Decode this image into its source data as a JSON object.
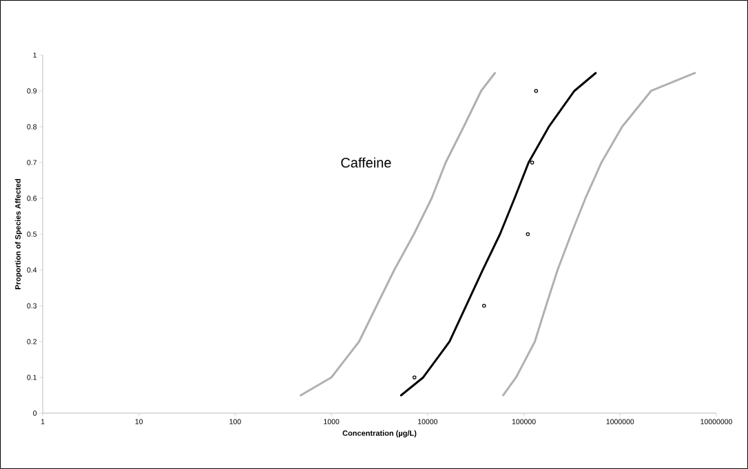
{
  "chart_data": {
    "type": "line",
    "xlabel": "Concentration (µg/L)",
    "ylabel": "Proportion of Species Affected",
    "annotations": [
      "Caffeine"
    ],
    "log": "x",
    "grid": false,
    "xlim": [
      1,
      10000000
    ],
    "xticks": [
      1,
      10,
      100,
      1000,
      10000,
      100000,
      1000000,
      10000000
    ],
    "ylim": [
      0,
      1
    ],
    "yticks": [
      0,
      0.1,
      0.2,
      0.3,
      0.4,
      0.5,
      0.6,
      0.7,
      0.8,
      0.9,
      1
    ],
    "series": [
      {
        "color": "#b0b0b0",
        "marker": "none",
        "x": [
          480,
          1000,
          1940,
          2950,
          4500,
          7200,
          11000,
          15400,
          23700,
          36000,
          50000
        ],
        "values": [
          0.05,
          0.1,
          0.2,
          0.3,
          0.4,
          0.5,
          0.6,
          0.7,
          0.8,
          0.9,
          0.95
        ]
      },
      {
        "color": "#b0b0b0",
        "marker": "none",
        "x": [
          61000,
          83000,
          130000,
          170000,
          224000,
          310000,
          436000,
          640000,
          1050000,
          2100000,
          6000000
        ],
        "values": [
          0.05,
          0.1,
          0.2,
          0.3,
          0.4,
          0.5,
          0.6,
          0.7,
          0.8,
          0.9,
          0.95
        ]
      },
      {
        "color": "#000000",
        "marker": "none",
        "x": [
          5300,
          9000,
          16900,
          37400,
          56500,
          80000,
          112000,
          182000,
          335000,
          558000
        ],
        "values": [
          0.05,
          0.1,
          0.2,
          0.4,
          0.5,
          0.6,
          0.7,
          0.8,
          0.9,
          0.95
        ]
      },
      {
        "type": "scatter",
        "color": "#000000",
        "marker": "circle",
        "x": [
          7300,
          38600,
          110000,
          122000,
          134000
        ],
        "values": [
          0.1,
          0.3,
          0.5,
          0.7,
          0.9
        ]
      }
    ]
  }
}
